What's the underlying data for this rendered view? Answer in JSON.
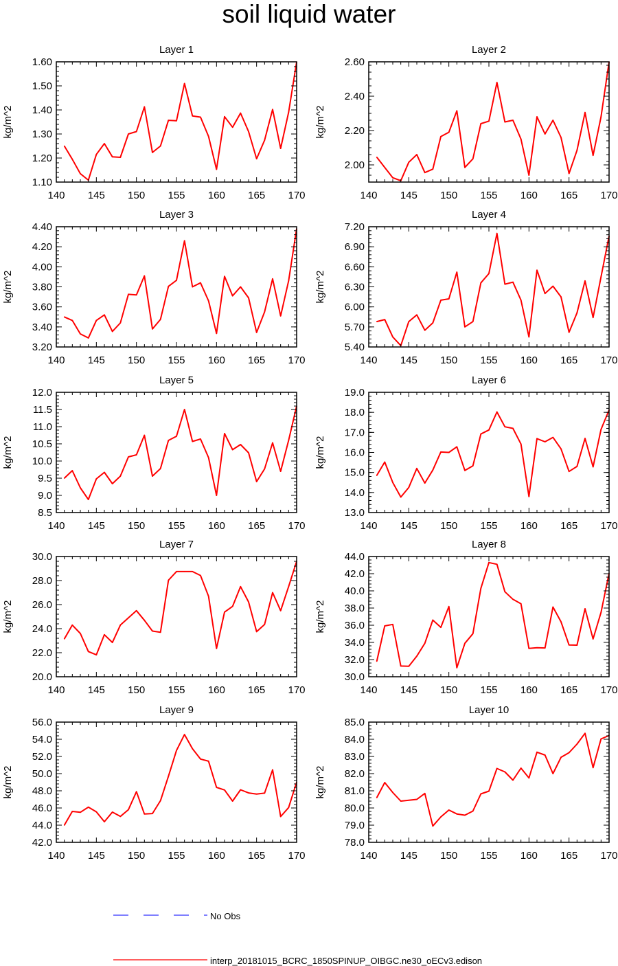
{
  "figure": {
    "title": "soil liquid water"
  },
  "legend": {
    "obs_label": "No Obs",
    "model_label": "interp_20181015_BCRC_1850SPINUP_OIBGC.ne30_oECv3.edison",
    "obs_color": "#3333ff",
    "model_color": "#ff0000"
  },
  "chart_data": [
    {
      "type": "line",
      "title": "Layer 1",
      "xlabel": "",
      "ylabel": "kg/m^2",
      "xlim": [
        140,
        170
      ],
      "ylim": [
        1.1,
        1.6
      ],
      "xticks": [
        140,
        145,
        150,
        155,
        160,
        165,
        170
      ],
      "yticks": [
        "1.10",
        "1.20",
        "1.30",
        "1.40",
        "1.50",
        "1.60"
      ],
      "x": [
        141,
        142,
        143,
        144,
        145,
        146,
        147,
        148,
        149,
        150,
        151,
        152,
        153,
        154,
        155,
        156,
        157,
        158,
        159,
        160,
        161,
        162,
        163,
        164,
        165,
        166,
        167,
        168,
        169,
        170
      ],
      "series": [
        {
          "name": "model",
          "values": [
            1.25,
            1.195,
            1.135,
            1.108,
            1.215,
            1.26,
            1.205,
            1.203,
            1.3,
            1.31,
            1.413,
            1.223,
            1.25,
            1.357,
            1.355,
            1.51,
            1.375,
            1.37,
            1.29,
            1.153,
            1.372,
            1.328,
            1.387,
            1.31,
            1.197,
            1.274,
            1.402,
            1.24,
            1.39,
            1.6
          ]
        }
      ]
    },
    {
      "type": "line",
      "title": "Layer 2",
      "xlabel": "",
      "ylabel": "kg/m^2",
      "xlim": [
        140,
        170
      ],
      "ylim": [
        1.9,
        2.6
      ],
      "xticks": [
        140,
        145,
        150,
        155,
        160,
        165,
        170
      ],
      "yticks": [
        "2.00",
        "2.20",
        "2.40",
        "2.60"
      ],
      "x": [
        141,
        142,
        143,
        144,
        145,
        146,
        147,
        148,
        149,
        150,
        151,
        152,
        153,
        154,
        155,
        156,
        157,
        158,
        159,
        160,
        161,
        162,
        163,
        164,
        165,
        166,
        167,
        168,
        169,
        170
      ],
      "series": [
        {
          "name": "model",
          "values": [
            2.045,
            1.985,
            1.925,
            1.908,
            2.015,
            2.06,
            1.955,
            1.975,
            2.165,
            2.19,
            2.315,
            1.985,
            2.035,
            2.24,
            2.255,
            2.48,
            2.25,
            2.26,
            2.15,
            1.94,
            2.28,
            2.18,
            2.26,
            2.16,
            1.95,
            2.085,
            2.305,
            2.055,
            2.28,
            2.6
          ]
        }
      ]
    },
    {
      "type": "line",
      "title": "Layer 3",
      "xlabel": "",
      "ylabel": "kg/m^2",
      "xlim": [
        140,
        170
      ],
      "ylim": [
        3.2,
        4.4
      ],
      "xticks": [
        140,
        145,
        150,
        155,
        160,
        165,
        170
      ],
      "yticks": [
        "3.20",
        "3.40",
        "3.60",
        "3.80",
        "4.00",
        "4.20",
        "4.40"
      ],
      "x": [
        141,
        142,
        143,
        144,
        145,
        146,
        147,
        148,
        149,
        150,
        151,
        152,
        153,
        154,
        155,
        156,
        157,
        158,
        159,
        160,
        161,
        162,
        163,
        164,
        165,
        166,
        167,
        168,
        169,
        170
      ],
      "series": [
        {
          "name": "model",
          "values": [
            3.5,
            3.465,
            3.33,
            3.29,
            3.465,
            3.52,
            3.355,
            3.44,
            3.725,
            3.72,
            3.91,
            3.38,
            3.475,
            3.805,
            3.865,
            4.26,
            3.8,
            3.84,
            3.66,
            3.335,
            3.905,
            3.71,
            3.8,
            3.69,
            3.345,
            3.55,
            3.88,
            3.51,
            3.86,
            4.38
          ]
        }
      ]
    },
    {
      "type": "line",
      "title": "Layer 4",
      "xlabel": "",
      "ylabel": "kg/m^2",
      "xlim": [
        140,
        170
      ],
      "ylim": [
        5.4,
        7.2
      ],
      "xticks": [
        140,
        145,
        150,
        155,
        160,
        165,
        170
      ],
      "yticks": [
        "5.40",
        "5.70",
        "6.00",
        "6.30",
        "6.60",
        "6.90",
        "7.20"
      ],
      "x": [
        141,
        142,
        143,
        144,
        145,
        146,
        147,
        148,
        149,
        150,
        151,
        152,
        153,
        154,
        155,
        156,
        157,
        158,
        159,
        160,
        161,
        162,
        163,
        164,
        165,
        166,
        167,
        168,
        169,
        170
      ],
      "series": [
        {
          "name": "model",
          "values": [
            5.78,
            5.81,
            5.55,
            5.42,
            5.78,
            5.88,
            5.65,
            5.76,
            6.1,
            6.12,
            6.52,
            5.7,
            5.78,
            6.36,
            6.5,
            7.1,
            6.34,
            6.37,
            6.1,
            5.55,
            6.55,
            6.2,
            6.31,
            6.15,
            5.62,
            5.91,
            6.39,
            5.84,
            6.45,
            7.06
          ]
        }
      ]
    },
    {
      "type": "line",
      "title": "Layer 5",
      "xlabel": "",
      "ylabel": "kg/m^2",
      "xlim": [
        140,
        170
      ],
      "ylim": [
        8.5,
        12.0
      ],
      "xticks": [
        140,
        145,
        150,
        155,
        160,
        165,
        170
      ],
      "yticks": [
        "8.5",
        "9.0",
        "9.5",
        "10.0",
        "10.5",
        "11.0",
        "11.5",
        "12.0"
      ],
      "x": [
        141,
        142,
        143,
        144,
        145,
        146,
        147,
        148,
        149,
        150,
        151,
        152,
        153,
        154,
        155,
        156,
        157,
        158,
        159,
        160,
        161,
        162,
        163,
        164,
        165,
        166,
        167,
        168,
        169,
        170
      ],
      "series": [
        {
          "name": "model",
          "values": [
            9.5,
            9.72,
            9.22,
            8.88,
            9.48,
            9.67,
            9.34,
            9.56,
            10.12,
            10.18,
            10.75,
            9.56,
            9.78,
            10.6,
            10.72,
            11.5,
            10.57,
            10.64,
            10.1,
            9.0,
            10.8,
            10.33,
            10.48,
            10.24,
            9.4,
            9.77,
            10.53,
            9.7,
            10.6,
            11.6
          ]
        }
      ]
    },
    {
      "type": "line",
      "title": "Layer 6",
      "xlabel": "",
      "ylabel": "kg/m^2",
      "xlim": [
        140,
        170
      ],
      "ylim": [
        13.0,
        19.0
      ],
      "xticks": [
        140,
        145,
        150,
        155,
        160,
        165,
        170
      ],
      "yticks": [
        "13.0",
        "14.0",
        "15.0",
        "16.0",
        "17.0",
        "18.0",
        "19.0"
      ],
      "x": [
        141,
        142,
        143,
        144,
        145,
        146,
        147,
        148,
        149,
        150,
        151,
        152,
        153,
        154,
        155,
        156,
        157,
        158,
        159,
        160,
        161,
        162,
        163,
        164,
        165,
        166,
        167,
        168,
        169,
        170
      ],
      "series": [
        {
          "name": "model",
          "values": [
            14.85,
            15.52,
            14.5,
            13.77,
            14.25,
            15.2,
            14.47,
            15.12,
            16.02,
            16.0,
            16.28,
            15.1,
            15.33,
            16.92,
            17.12,
            18.02,
            17.28,
            17.2,
            16.42,
            13.8,
            16.69,
            16.53,
            16.75,
            16.18,
            15.05,
            15.3,
            16.7,
            15.28,
            17.15,
            18.12
          ]
        }
      ]
    },
    {
      "type": "line",
      "title": "Layer 7",
      "xlabel": "",
      "ylabel": "kg/m^2",
      "xlim": [
        140,
        170
      ],
      "ylim": [
        20.0,
        30.0
      ],
      "xticks": [
        140,
        145,
        150,
        155,
        160,
        165,
        170
      ],
      "yticks": [
        "20.0",
        "22.0",
        "24.0",
        "26.0",
        "28.0",
        "30.0"
      ],
      "x": [
        141,
        142,
        143,
        144,
        145,
        146,
        147,
        148,
        149,
        150,
        151,
        152,
        153,
        154,
        155,
        156,
        157,
        158,
        159,
        160,
        161,
        162,
        163,
        164,
        165,
        166,
        167,
        168,
        169,
        170
      ],
      "series": [
        {
          "name": "model",
          "values": [
            23.15,
            24.3,
            23.6,
            22.1,
            21.82,
            23.5,
            22.85,
            24.3,
            24.9,
            25.5,
            24.7,
            23.8,
            23.7,
            28.02,
            28.75,
            28.75,
            28.75,
            28.42,
            26.7,
            22.35,
            25.38,
            25.85,
            27.5,
            26.22,
            23.75,
            24.35,
            27.0,
            25.5,
            27.5,
            29.6
          ]
        }
      ]
    },
    {
      "type": "line",
      "title": "Layer 8",
      "xlabel": "",
      "ylabel": "kg/m^2",
      "xlim": [
        140,
        170
      ],
      "ylim": [
        30.0,
        44.0
      ],
      "xticks": [
        140,
        145,
        150,
        155,
        160,
        165,
        170
      ],
      "yticks": [
        "30.0",
        "32.0",
        "34.0",
        "36.0",
        "38.0",
        "40.0",
        "42.0",
        "44.0"
      ],
      "x": [
        141,
        142,
        143,
        144,
        145,
        146,
        147,
        148,
        149,
        150,
        151,
        152,
        153,
        154,
        155,
        156,
        157,
        158,
        159,
        160,
        161,
        162,
        163,
        164,
        165,
        166,
        167,
        168,
        169,
        170
      ],
      "series": [
        {
          "name": "model",
          "values": [
            31.8,
            35.92,
            36.1,
            31.25,
            31.22,
            32.4,
            33.9,
            36.6,
            35.75,
            38.18,
            31.05,
            33.9,
            35.02,
            40.3,
            43.3,
            43.1,
            39.9,
            39.02,
            38.5,
            33.3,
            33.38,
            33.35,
            38.12,
            36.4,
            33.7,
            33.68,
            37.92,
            34.4,
            37.5,
            42.05
          ]
        }
      ]
    },
    {
      "type": "line",
      "title": "Layer 9",
      "xlabel": "",
      "ylabel": "kg/m^2",
      "xlim": [
        140,
        170
      ],
      "ylim": [
        42.0,
        56.0
      ],
      "xticks": [
        140,
        145,
        150,
        155,
        160,
        165,
        170
      ],
      "yticks": [
        "42.0",
        "44.0",
        "46.0",
        "48.0",
        "50.0",
        "52.0",
        "54.0",
        "56.0"
      ],
      "x": [
        141,
        142,
        143,
        144,
        145,
        146,
        147,
        148,
        149,
        150,
        151,
        152,
        153,
        154,
        155,
        156,
        157,
        158,
        159,
        160,
        161,
        162,
        163,
        164,
        165,
        166,
        167,
        168,
        169,
        170
      ],
      "series": [
        {
          "name": "model",
          "values": [
            44.0,
            45.6,
            45.5,
            46.1,
            45.55,
            44.4,
            45.52,
            45.02,
            45.8,
            47.9,
            45.3,
            45.35,
            46.85,
            49.7,
            52.7,
            54.55,
            52.9,
            51.7,
            51.45,
            48.4,
            48.1,
            46.8,
            48.12,
            47.75,
            47.62,
            47.73,
            50.45,
            45.0,
            46.05,
            49.0
          ]
        }
      ]
    },
    {
      "type": "line",
      "title": "Layer 10",
      "xlabel": "",
      "ylabel": "kg/m^2",
      "xlim": [
        140,
        170
      ],
      "ylim": [
        78.0,
        85.0
      ],
      "xticks": [
        140,
        145,
        150,
        155,
        160,
        165,
        170
      ],
      "yticks": [
        "78.0",
        "79.0",
        "80.0",
        "81.0",
        "82.0",
        "83.0",
        "84.0",
        "85.0"
      ],
      "x": [
        141,
        142,
        143,
        144,
        145,
        146,
        147,
        148,
        149,
        150,
        151,
        152,
        153,
        154,
        155,
        156,
        157,
        158,
        159,
        160,
        161,
        162,
        163,
        164,
        165,
        166,
        167,
        168,
        169,
        170
      ],
      "series": [
        {
          "name": "model",
          "values": [
            80.6,
            81.48,
            80.9,
            80.4,
            80.45,
            80.5,
            80.85,
            78.95,
            79.48,
            79.88,
            79.65,
            79.58,
            79.82,
            80.82,
            80.98,
            82.3,
            82.1,
            81.62,
            82.32,
            81.75,
            83.25,
            83.08,
            82.0,
            82.95,
            83.22,
            83.72,
            84.35,
            82.35,
            84.02,
            84.22
          ]
        }
      ]
    }
  ]
}
